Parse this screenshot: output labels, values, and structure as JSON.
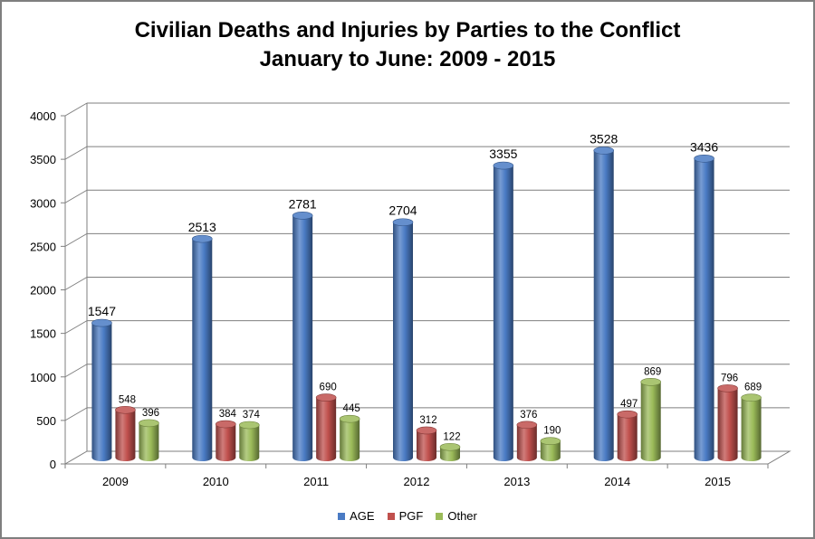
{
  "chart_data": {
    "type": "bar",
    "title_lines": [
      "Civilian Deaths and Injuries by Parties to the Conflict",
      "January to June: 2009 - 2015"
    ],
    "categories": [
      "2009",
      "2010",
      "2011",
      "2012",
      "2013",
      "2014",
      "2015"
    ],
    "series": [
      {
        "name": "AGE",
        "color": "#4a7bc4",
        "values": [
          1547,
          2513,
          2781,
          2704,
          3355,
          3528,
          3436
        ]
      },
      {
        "name": "PGF",
        "color": "#c0504d",
        "values": [
          548,
          384,
          690,
          312,
          376,
          497,
          796
        ]
      },
      {
        "name": "Other",
        "color": "#9bbb59",
        "values": [
          396,
          374,
          445,
          122,
          190,
          869,
          689
        ]
      }
    ],
    "y_ticks": [
      "0",
      "500",
      "1000",
      "1500",
      "2000",
      "2500",
      "3000",
      "3500",
      "4000"
    ],
    "ylim": [
      0,
      4000
    ],
    "grid": true,
    "legend_position": "bottom",
    "style": "3d-cylinder"
  }
}
